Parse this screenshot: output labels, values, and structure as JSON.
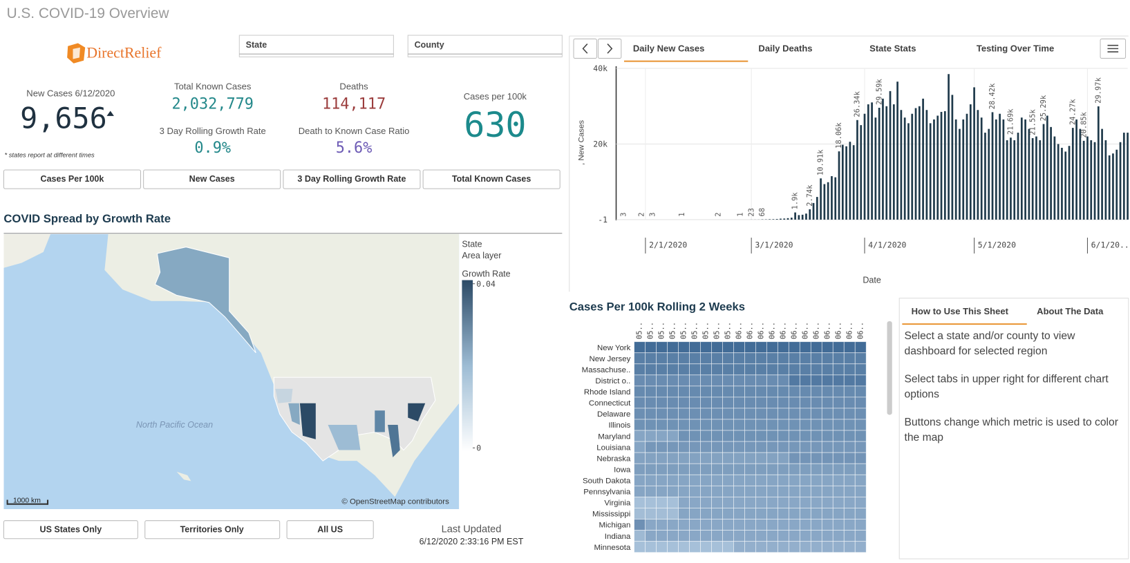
{
  "header": {
    "title": "U.S. COVID-19 Overview",
    "logo": "DirectRelief"
  },
  "filters": [
    "State",
    "County"
  ],
  "kpis": {
    "new_cases": {
      "label": "New Cases 6/12/2020",
      "value": "9,656",
      "note": "* states report at different times"
    },
    "total_cases": {
      "label": "Total Known Cases",
      "value": "2,032,779"
    },
    "growth_rate": {
      "label": "3 Day Rolling Growth Rate",
      "value": "0.9%"
    },
    "deaths": {
      "label": "Deaths",
      "value": "114,117"
    },
    "death_ratio": {
      "label": "Death to Known Case Ratio",
      "value": "5.6%"
    },
    "per_100k": {
      "label": "Cases per 100k",
      "value": "630"
    }
  },
  "metric_buttons": [
    "Cases Per 100k",
    "New Cases",
    "3 Day Rolling Growth Rate",
    "Total Known Cases"
  ],
  "map": {
    "title": "COVID Spread by Growth Rate",
    "layer": "State",
    "layer_type": "Area layer",
    "legend": {
      "title": "Growth Rate",
      "clim": [
        0,
        0.04
      ],
      "ticks": [
        0.04,
        0
      ]
    },
    "ocean_label": "North Pacific Ocean",
    "scale": "1000 km",
    "attribution": "© OpenStreetMap contributors"
  },
  "region_buttons": [
    "US States Only",
    "Territories Only",
    "All US"
  ],
  "updated": {
    "label": "Last Updated",
    "time": "6/12/2020 2:33:16 PM EST"
  },
  "tabs": [
    "Daily New Cases",
    "Daily Deaths",
    "State Stats",
    "Testing Over Time"
  ],
  "chart_data": [
    {
      "type": "bar",
      "x_label": "Date",
      "y_label": ", New Cases",
      "color": "#1f3a4b",
      "grid": true,
      "xlim": [
        "2020-01-23",
        "2020-06-13"
      ],
      "xticks": [
        {
          "value": "2020-02-01",
          "label": "2/1/2020"
        },
        {
          "value": "2020-03-01",
          "label": "3/1/2020"
        },
        {
          "value": "2020-04-01",
          "label": "4/1/2020"
        },
        {
          "value": "2020-05-01",
          "label": "5/1/2020"
        },
        {
          "value": "2020-06-01",
          "label": "6/1/20..."
        }
      ],
      "ylim": [
        -1,
        40000
      ],
      "yticks": [
        -1,
        {
          "value": 20000,
          "label": "20k"
        },
        {
          "value": 40000,
          "label": "40k"
        }
      ],
      "x": [
        "2020-01-24",
        "2020-01-25",
        "2020-01-26",
        "2020-01-27",
        "2020-01-28",
        "2020-01-29",
        "2020-01-30",
        "2020-01-31",
        "2020-02-01",
        "2020-02-02",
        "2020-02-03",
        "2020-02-04",
        "2020-02-05",
        "2020-02-06",
        "2020-02-07",
        "2020-02-08",
        "2020-02-09",
        "2020-02-10",
        "2020-02-11",
        "2020-02-12",
        "2020-02-13",
        "2020-02-14",
        "2020-02-15",
        "2020-02-16",
        "2020-02-17",
        "2020-02-18",
        "2020-02-19",
        "2020-02-20",
        "2020-02-21",
        "2020-02-22",
        "2020-02-23",
        "2020-02-24",
        "2020-02-25",
        "2020-02-26",
        "2020-02-27",
        "2020-02-28",
        "2020-02-29",
        "2020-03-01",
        "2020-03-02",
        "2020-03-03",
        "2020-03-04",
        "2020-03-05",
        "2020-03-06",
        "2020-03-07",
        "2020-03-08",
        "2020-03-09",
        "2020-03-10",
        "2020-03-11",
        "2020-03-12",
        "2020-03-13",
        "2020-03-14",
        "2020-03-15",
        "2020-03-16",
        "2020-03-17",
        "2020-03-18",
        "2020-03-19",
        "2020-03-20",
        "2020-03-21",
        "2020-03-22",
        "2020-03-23",
        "2020-03-24",
        "2020-03-25",
        "2020-03-26",
        "2020-03-27",
        "2020-03-28",
        "2020-03-29",
        "2020-03-30",
        "2020-03-31",
        "2020-04-01",
        "2020-04-02",
        "2020-04-03",
        "2020-04-04",
        "2020-04-05",
        "2020-04-06",
        "2020-04-07",
        "2020-04-08",
        "2020-04-09",
        "2020-04-10",
        "2020-04-11",
        "2020-04-12",
        "2020-04-13",
        "2020-04-14",
        "2020-04-15",
        "2020-04-16",
        "2020-04-17",
        "2020-04-18",
        "2020-04-19",
        "2020-04-20",
        "2020-04-21",
        "2020-04-22",
        "2020-04-23",
        "2020-04-24",
        "2020-04-25",
        "2020-04-26",
        "2020-04-27",
        "2020-04-28",
        "2020-04-29",
        "2020-04-30",
        "2020-05-01",
        "2020-05-02",
        "2020-05-03",
        "2020-05-04",
        "2020-05-05",
        "2020-05-06",
        "2020-05-07",
        "2020-05-08",
        "2020-05-09",
        "2020-05-10",
        "2020-05-11",
        "2020-05-12",
        "2020-05-13",
        "2020-05-14",
        "2020-05-15",
        "2020-05-16",
        "2020-05-17",
        "2020-05-18",
        "2020-05-19",
        "2020-05-20",
        "2020-05-21",
        "2020-05-22",
        "2020-05-23",
        "2020-05-24",
        "2020-05-25",
        "2020-05-26",
        "2020-05-27",
        "2020-05-28",
        "2020-05-29",
        "2020-05-30",
        "2020-05-31",
        "2020-06-01",
        "2020-06-02",
        "2020-06-03",
        "2020-06-04",
        "2020-06-05",
        "2020-06-06",
        "2020-06-07",
        "2020-06-08",
        "2020-06-09",
        "2020-06-10",
        "2020-06-11",
        "2020-06-12"
      ],
      "values": [
        0,
        0,
        3,
        0,
        0,
        0,
        0,
        2,
        0,
        0,
        3,
        0,
        0,
        0,
        0,
        0,
        0,
        0,
        1,
        0,
        0,
        0,
        0,
        0,
        0,
        0,
        0,
        0,
        2,
        0,
        0,
        0,
        0,
        0,
        1,
        0,
        0,
        23,
        22,
        24,
        68,
        70,
        110,
        120,
        160,
        260,
        290,
        390,
        520,
        1900,
        1200,
        1300,
        1600,
        2740,
        4400,
        6000,
        10910,
        9400,
        9900,
        11500,
        11200,
        18060,
        19800,
        19400,
        20600,
        19700,
        26340,
        25000,
        28000,
        30500,
        31000,
        27000,
        29590,
        32000,
        30000,
        34000,
        30500,
        36500,
        29000,
        27000,
        25500,
        28000,
        29500,
        30000,
        32000,
        29000,
        25500,
        26500,
        27500,
        28500,
        28700,
        38500,
        33000,
        26500,
        24000,
        26500,
        28000,
        30500,
        35000,
        29000,
        27000,
        23000,
        24000,
        28420,
        26500,
        28000,
        26500,
        21000,
        21690,
        21000,
        23000,
        27000,
        26500,
        24000,
        21550,
        22000,
        21000,
        25290,
        27500,
        24500,
        22000,
        20000,
        19000,
        18000,
        19500,
        24270,
        26500,
        24000,
        20850,
        22000,
        21000,
        20500,
        29970,
        24000,
        21000,
        17000,
        17500,
        18500,
        20500,
        23000,
        23000
      ],
      "value_labels": [
        null,
        null,
        "3",
        null,
        null,
        null,
        null,
        "2",
        null,
        null,
        "3",
        null,
        null,
        null,
        null,
        null,
        null,
        null,
        "1",
        null,
        null,
        null,
        null,
        null,
        null,
        null,
        null,
        null,
        "2",
        null,
        null,
        null,
        null,
        null,
        "1",
        null,
        null,
        "23",
        null,
        null,
        "68",
        null,
        null,
        null,
        null,
        null,
        null,
        null,
        null,
        "1.9k",
        null,
        null,
        null,
        "2.74k",
        null,
        null,
        "10.91k",
        null,
        null,
        null,
        null,
        "18.06k",
        null,
        null,
        null,
        null,
        "26.34k",
        null,
        null,
        null,
        null,
        null,
        "29.59k",
        null,
        null,
        null,
        null,
        null,
        null,
        null,
        null,
        null,
        null,
        null,
        null,
        null,
        null,
        null,
        null,
        null,
        null,
        null,
        null,
        null,
        null,
        null,
        null,
        null,
        null,
        null,
        null,
        null,
        null,
        "28.42k",
        null,
        null,
        null,
        null,
        "21.69k",
        null,
        null,
        null,
        null,
        null,
        "21.55k",
        null,
        null,
        "25.29k",
        null,
        null,
        null,
        null,
        null,
        null,
        null,
        "24.27k",
        null,
        null,
        "20.85k",
        null,
        null,
        null,
        "29.97k",
        null,
        null,
        null,
        null,
        null,
        null,
        null,
        null
      ]
    },
    {
      "type": "heatmap",
      "title": "Cases Per 100k Rolling 2 Weeks",
      "clim": [
        0,
        100
      ],
      "colors": [
        "#d7e8f8",
        "#35618f"
      ],
      "columns": [
        "05..",
        "05..",
        "05..",
        "05..",
        "05..",
        "05..",
        "05..",
        "05..",
        "05..",
        "06..",
        "06..",
        "06..",
        "06..",
        "06..",
        "06..",
        "06..",
        "06..",
        "06..",
        "06..",
        "06..",
        "06.."
      ],
      "rows": [
        "New York",
        "New Jersey",
        "Massachuse..",
        "District o..",
        "Rhode Island",
        "Connecticut",
        "Delaware",
        "Illinois",
        "Maryland",
        "Louisiana",
        "Nebraska",
        "Iowa",
        "South Dakota",
        "Pennsylvania",
        "Virginia",
        "Mississippi",
        "Michigan",
        "Indiana",
        "Minnesota"
      ],
      "values": [
        [
          92,
          92,
          92,
          92,
          92,
          92,
          92,
          92,
          92,
          92,
          92,
          92,
          92,
          92,
          92,
          92,
          92,
          92,
          92,
          92,
          92
        ],
        [
          78,
          78,
          78,
          78,
          78,
          78,
          78,
          78,
          78,
          78,
          78,
          78,
          78,
          78,
          78,
          78,
          78,
          78,
          78,
          78,
          78
        ],
        [
          78,
          78,
          78,
          78,
          78,
          78,
          78,
          78,
          78,
          78,
          78,
          78,
          78,
          78,
          78,
          78,
          78,
          78,
          78,
          78,
          78
        ],
        [
          68,
          68,
          68,
          68,
          68,
          68,
          68,
          68,
          68,
          68,
          68,
          68,
          68,
          68,
          82,
          82,
          82,
          82,
          82,
          82,
          82
        ],
        [
          70,
          70,
          70,
          70,
          70,
          70,
          70,
          70,
          70,
          70,
          70,
          70,
          70,
          70,
          70,
          70,
          70,
          70,
          70,
          70,
          70
        ],
        [
          68,
          68,
          68,
          68,
          68,
          68,
          68,
          68,
          68,
          68,
          68,
          68,
          68,
          68,
          68,
          68,
          68,
          68,
          68,
          68,
          68
        ],
        [
          66,
          66,
          66,
          66,
          66,
          66,
          66,
          66,
          66,
          66,
          66,
          66,
          66,
          66,
          66,
          66,
          66,
          66,
          66,
          66,
          66
        ],
        [
          64,
          64,
          64,
          64,
          64,
          64,
          64,
          64,
          64,
          64,
          64,
          64,
          64,
          64,
          64,
          64,
          64,
          64,
          64,
          64,
          64
        ],
        [
          50,
          50,
          50,
          50,
          64,
          64,
          64,
          64,
          64,
          64,
          64,
          64,
          64,
          64,
          64,
          64,
          64,
          64,
          64,
          64,
          64
        ],
        [
          50,
          60,
          60,
          60,
          60,
          60,
          60,
          60,
          60,
          60,
          60,
          60,
          60,
          60,
          60,
          60,
          60,
          60,
          60,
          60,
          60
        ],
        [
          52,
          52,
          52,
          52,
          52,
          52,
          52,
          52,
          52,
          52,
          52,
          52,
          52,
          52,
          62,
          62,
          62,
          62,
          62,
          62,
          62
        ],
        [
          55,
          55,
          55,
          55,
          55,
          55,
          55,
          55,
          55,
          55,
          55,
          55,
          55,
          55,
          55,
          55,
          55,
          55,
          55,
          55,
          55
        ],
        [
          50,
          50,
          50,
          50,
          50,
          50,
          50,
          50,
          50,
          50,
          50,
          50,
          50,
          50,
          50,
          50,
          50,
          50,
          50,
          50,
          50
        ],
        [
          50,
          50,
          50,
          50,
          50,
          50,
          50,
          50,
          50,
          50,
          50,
          50,
          50,
          50,
          50,
          50,
          50,
          50,
          50,
          50,
          50
        ],
        [
          30,
          30,
          30,
          30,
          48,
          48,
          48,
          48,
          48,
          48,
          48,
          48,
          48,
          48,
          48,
          48,
          48,
          48,
          48,
          48,
          48
        ],
        [
          32,
          32,
          32,
          32,
          50,
          50,
          50,
          50,
          50,
          50,
          50,
          50,
          50,
          50,
          50,
          50,
          50,
          50,
          50,
          50,
          50
        ],
        [
          65,
          48,
          48,
          48,
          48,
          48,
          48,
          48,
          48,
          48,
          48,
          48,
          48,
          48,
          48,
          48,
          48,
          48,
          48,
          48,
          48
        ],
        [
          35,
          48,
          48,
          48,
          48,
          48,
          48,
          48,
          48,
          48,
          48,
          48,
          48,
          48,
          48,
          48,
          48,
          48,
          48,
          48,
          48
        ],
        [
          30,
          30,
          30,
          30,
          30,
          30,
          30,
          30,
          30,
          42,
          42,
          42,
          42,
          42,
          42,
          42,
          42,
          42,
          42,
          42,
          42
        ]
      ]
    }
  ],
  "help": {
    "tabs": [
      "How to Use This Sheet",
      "About The Data"
    ],
    "paragraphs": [
      "Select a state and/or county to view dashboard for selected region",
      "Select tabs in upper right for different chart options",
      "Buttons change which metric is used to color the map"
    ]
  }
}
